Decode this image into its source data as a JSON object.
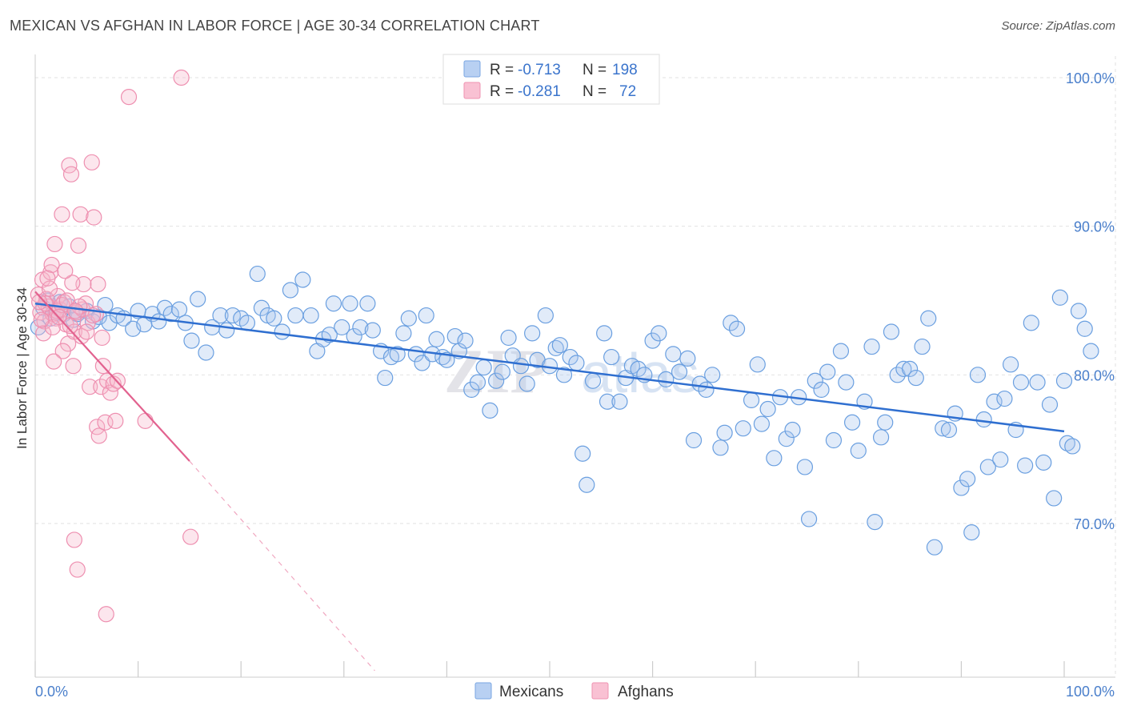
{
  "title": "MEXICAN VS AFGHAN IN LABOR FORCE | AGE 30-34 CORRELATION CHART",
  "source": "Source: ZipAtlas.com",
  "chart_data": {
    "type": "scatter",
    "title": "MEXICAN VS AFGHAN IN LABOR FORCE | AGE 30-34 CORRELATION CHART",
    "ylabel": "In Labor Force | Age 30-34",
    "xlabel": "",
    "xlim": [
      0,
      100
    ],
    "ylim": [
      60,
      100
    ],
    "x_tick_labels": [
      "0.0%",
      "100.0%"
    ],
    "y_ticks": [
      70,
      80,
      90,
      100
    ],
    "y_tick_labels": [
      "70.0%",
      "80.0%",
      "90.0%",
      "100.0%"
    ],
    "grid": true,
    "legend_position": "bottom-center",
    "watermark": "ZIPatlas",
    "stats": [
      {
        "r_label": "R =",
        "r": "-0.713",
        "n_label": "N =",
        "n": "198",
        "color": "#8cb4e8"
      },
      {
        "r_label": "R =",
        "r": "-0.281",
        "n_label": "N =",
        "n": "72",
        "color": "#f4a8c0"
      }
    ],
    "series": [
      {
        "name": "Mexicans",
        "color": "#6a9fe0",
        "line_color": "#2f6fd0",
        "trend": {
          "x0": 0,
          "y0": 84.8,
          "x1": 100,
          "y1": 76.2
        },
        "points": [
          [
            0.3,
            83.2
          ],
          [
            0.8,
            84.5
          ],
          [
            1.2,
            85.0
          ],
          [
            1.5,
            83.8
          ],
          [
            2,
            84.2
          ],
          [
            2.4,
            84.9
          ],
          [
            2.8,
            84.1
          ],
          [
            3.3,
            84.6
          ],
          [
            3.7,
            83.7
          ],
          [
            4.1,
            84.1
          ],
          [
            5,
            84.3
          ],
          [
            5.6,
            83.6
          ],
          [
            6.2,
            83.9
          ],
          [
            6.8,
            84.7
          ],
          [
            7.2,
            83.5
          ],
          [
            8,
            84
          ],
          [
            8.6,
            83.8
          ],
          [
            9.5,
            83.1
          ],
          [
            10,
            84.3
          ],
          [
            10.6,
            83.4
          ],
          [
            11.4,
            84.1
          ],
          [
            12,
            83.6
          ],
          [
            12.6,
            84.5
          ],
          [
            13.2,
            84.1
          ],
          [
            14,
            84.4
          ],
          [
            14.6,
            83.5
          ],
          [
            15.2,
            82.3
          ],
          [
            15.8,
            85.1
          ],
          [
            16.6,
            81.5
          ],
          [
            17.2,
            83.2
          ],
          [
            18,
            84
          ],
          [
            18.6,
            83
          ],
          [
            19.2,
            84
          ],
          [
            20,
            83.8
          ],
          [
            20.6,
            83.5
          ],
          [
            21.6,
            86.8
          ],
          [
            22,
            84.5
          ],
          [
            22.6,
            84
          ],
          [
            23.2,
            83.8
          ],
          [
            24,
            82.9
          ],
          [
            24.8,
            85.7
          ],
          [
            25.3,
            84
          ],
          [
            26,
            86.4
          ],
          [
            26.8,
            84
          ],
          [
            27.4,
            81.6
          ],
          [
            28,
            82.4
          ],
          [
            28.6,
            82.7
          ],
          [
            29,
            84.8
          ],
          [
            29.8,
            83.2
          ],
          [
            30.6,
            84.8
          ],
          [
            31,
            82.6
          ],
          [
            31.6,
            83.2
          ],
          [
            32.3,
            84.8
          ],
          [
            32.8,
            83
          ],
          [
            33.6,
            81.6
          ],
          [
            34,
            79.8
          ],
          [
            34.6,
            81.2
          ],
          [
            35.2,
            81.4
          ],
          [
            35.8,
            82.8
          ],
          [
            36.3,
            83.8
          ],
          [
            37,
            81.4
          ],
          [
            37.6,
            80.8
          ],
          [
            38,
            84
          ],
          [
            38.6,
            81.4
          ],
          [
            39,
            82.4
          ],
          [
            39.6,
            81.2
          ],
          [
            40,
            81
          ],
          [
            40.8,
            82.6
          ],
          [
            41.2,
            81.6
          ],
          [
            41.8,
            82.3
          ],
          [
            42.4,
            79
          ],
          [
            43,
            79.5
          ],
          [
            43.6,
            80.5
          ],
          [
            44.2,
            77.6
          ],
          [
            44.8,
            79.6
          ],
          [
            45.4,
            80.2
          ],
          [
            46,
            82.5
          ],
          [
            46.4,
            81.3
          ],
          [
            47.2,
            80.6
          ],
          [
            47.8,
            79.4
          ],
          [
            48.3,
            82.8
          ],
          [
            48.8,
            81
          ],
          [
            49.6,
            84
          ],
          [
            50,
            80.6
          ],
          [
            50.6,
            81.8
          ],
          [
            51,
            82
          ],
          [
            51.4,
            80
          ],
          [
            52,
            81.2
          ],
          [
            52.6,
            80.8
          ],
          [
            53.2,
            74.7
          ],
          [
            53.6,
            72.6
          ],
          [
            54.2,
            79.6
          ],
          [
            55.3,
            82.8
          ],
          [
            55.6,
            78.2
          ],
          [
            56,
            81.2
          ],
          [
            56.8,
            78.2
          ],
          [
            57.4,
            79.8
          ],
          [
            58,
            80.6
          ],
          [
            58.6,
            80.4
          ],
          [
            59.2,
            80
          ],
          [
            60,
            82.3
          ],
          [
            60.6,
            82.8
          ],
          [
            61.3,
            79.7
          ],
          [
            62,
            81.4
          ],
          [
            62.6,
            80.2
          ],
          [
            63.4,
            81.1
          ],
          [
            64,
            75.6
          ],
          [
            64.6,
            79.4
          ],
          [
            65.2,
            79.0
          ],
          [
            65.8,
            80.0
          ],
          [
            66.6,
            75.1
          ],
          [
            67,
            76.1
          ],
          [
            67.6,
            83.5
          ],
          [
            68.2,
            83.1
          ],
          [
            68.8,
            76.4
          ],
          [
            69.6,
            78.3
          ],
          [
            70.2,
            80.7
          ],
          [
            70.6,
            76.7
          ],
          [
            71.2,
            77.7
          ],
          [
            71.8,
            74.4
          ],
          [
            72.4,
            78.5
          ],
          [
            73,
            75.7
          ],
          [
            73.6,
            76.3
          ],
          [
            74.2,
            78.5
          ],
          [
            74.8,
            73.8
          ],
          [
            75.2,
            70.3
          ],
          [
            75.8,
            79.6
          ],
          [
            76.4,
            79.0
          ],
          [
            77,
            80.2
          ],
          [
            77.6,
            75.6
          ],
          [
            78.3,
            81.6
          ],
          [
            78.8,
            79.5
          ],
          [
            79.4,
            76.8
          ],
          [
            80,
            74.9
          ],
          [
            80.6,
            78.2
          ],
          [
            81.3,
            81.9
          ],
          [
            81.6,
            70.1
          ],
          [
            82.2,
            75.8
          ],
          [
            82.6,
            76.8
          ],
          [
            83.2,
            82.9
          ],
          [
            83.8,
            80
          ],
          [
            84.4,
            80.4
          ],
          [
            85,
            80.4
          ],
          [
            85.6,
            79.8
          ],
          [
            86.2,
            81.9
          ],
          [
            86.8,
            83.8
          ],
          [
            87.4,
            68.4
          ],
          [
            88.2,
            76.4
          ],
          [
            88.8,
            76.3
          ],
          [
            89.4,
            77.4
          ],
          [
            90,
            72.4
          ],
          [
            90.6,
            73.0
          ],
          [
            91,
            69.4
          ],
          [
            91.6,
            80.0
          ],
          [
            92.2,
            77.0
          ],
          [
            92.6,
            73.8
          ],
          [
            93.2,
            78.2
          ],
          [
            93.8,
            74.3
          ],
          [
            94.2,
            78.4
          ],
          [
            94.8,
            80.7
          ],
          [
            95.3,
            76.3
          ],
          [
            95.8,
            79.5
          ],
          [
            96.2,
            73.9
          ],
          [
            96.8,
            83.5
          ],
          [
            97.4,
            79.5
          ],
          [
            98,
            74.1
          ],
          [
            98.6,
            78.0
          ],
          [
            99,
            71.7
          ],
          [
            99.6,
            85.2
          ],
          [
            100,
            79.6
          ],
          [
            100.3,
            75.4
          ],
          [
            100.8,
            75.2
          ],
          [
            101.4,
            84.3
          ],
          [
            102,
            83.1
          ],
          [
            102.6,
            81.6
          ]
        ]
      },
      {
        "name": "Afghans",
        "color": "#f093b4",
        "line_color": "#e2628f",
        "trend": {
          "x0": 0,
          "y0": 85.6,
          "x1": 15,
          "y1": 74.2,
          "dash_to_x": 33,
          "dash_to_y": 60.1
        },
        "points": [
          [
            0.3,
            85.4
          ],
          [
            0.5,
            84.2
          ],
          [
            0.7,
            86.4
          ],
          [
            0.9,
            83.6
          ],
          [
            1.1,
            85.1
          ],
          [
            1.3,
            84.6
          ],
          [
            1.5,
            86.9
          ],
          [
            1.6,
            87.4
          ],
          [
            1.7,
            84.1
          ],
          [
            1.9,
            88.8
          ],
          [
            2.0,
            83.8
          ],
          [
            2.2,
            85.3
          ],
          [
            2.4,
            84.4
          ],
          [
            2.6,
            90.8
          ],
          [
            2.8,
            84.9
          ],
          [
            3.0,
            83.4
          ],
          [
            3.2,
            82.1
          ],
          [
            3.3,
            94.1
          ],
          [
            3.5,
            93.5
          ],
          [
            3.7,
            80.6
          ],
          [
            3.8,
            82.9
          ],
          [
            4.0,
            84.2
          ],
          [
            4.2,
            88.7
          ],
          [
            4.4,
            90.8
          ],
          [
            4.6,
            84.4
          ],
          [
            4.7,
            86.1
          ],
          [
            4.9,
            84.8
          ],
          [
            5.1,
            83.5
          ],
          [
            5.3,
            79.2
          ],
          [
            5.5,
            94.3
          ],
          [
            5.7,
            90.6
          ],
          [
            5.9,
            84.1
          ],
          [
            6.0,
            76.5
          ],
          [
            6.2,
            75.9
          ],
          [
            6.4,
            79.2
          ],
          [
            6.6,
            80.6
          ],
          [
            6.8,
            76.8
          ],
          [
            7.0,
            79.6
          ],
          [
            7.3,
            78.8
          ],
          [
            7.6,
            79.4
          ],
          [
            8,
            79.6
          ],
          [
            9.1,
            98.7
          ],
          [
            10.7,
            76.9
          ],
          [
            14.2,
            100.0
          ],
          [
            15.1,
            69.1
          ],
          [
            3.8,
            68.9
          ],
          [
            4.1,
            66.9
          ],
          [
            6.9,
            63.9
          ],
          [
            2.1,
            84.3
          ],
          [
            1.4,
            85.8
          ],
          [
            2.6,
            84.7
          ],
          [
            3.1,
            85.0
          ],
          [
            3.6,
            86.2
          ],
          [
            0.8,
            82.8
          ],
          [
            1.0,
            84.8
          ],
          [
            1.7,
            83.2
          ],
          [
            2.3,
            83.9
          ],
          [
            4.5,
            82.6
          ],
          [
            5.0,
            82.9
          ],
          [
            2.9,
            87.0
          ],
          [
            1.2,
            86.5
          ],
          [
            0.6,
            83.7
          ],
          [
            3.4,
            83.3
          ],
          [
            4.3,
            84.6
          ],
          [
            5.6,
            84.0
          ],
          [
            6.1,
            86.1
          ],
          [
            6.5,
            82.5
          ],
          [
            2.7,
            81.6
          ],
          [
            1.8,
            80.9
          ],
          [
            7.8,
            76.9
          ],
          [
            0.4,
            84.9
          ],
          [
            3.9,
            84.3
          ]
        ]
      }
    ]
  }
}
